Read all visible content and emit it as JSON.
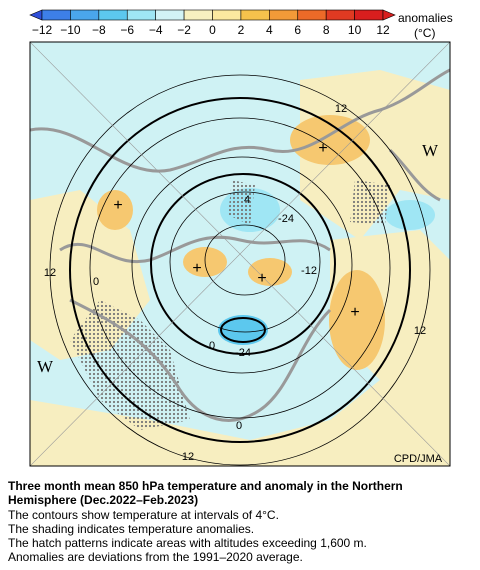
{
  "colorbar": {
    "label": "anomalies",
    "unit": "(°C)",
    "ticks": [
      {
        "value": -12,
        "label": "−12"
      },
      {
        "value": -10,
        "label": "−10"
      },
      {
        "value": -8,
        "label": "−8"
      },
      {
        "value": -6,
        "label": "−6"
      },
      {
        "value": -4,
        "label": "−4"
      },
      {
        "value": -2,
        "label": "−2"
      },
      0,
      2,
      4,
      6,
      8,
      10,
      12
    ],
    "colors": [
      "#2f4fd8",
      "#3d7fe8",
      "#4aa6ec",
      "#5cc8ee",
      "#9fe6f4",
      "#d2f3f6",
      "#f7f0c0",
      "#fbe9a0",
      "#f6c24c",
      "#f29a38",
      "#ec6a28",
      "#e03a22",
      "#d81e1e",
      "#d81e1e"
    ]
  },
  "map": {
    "labels": [
      "12",
      "W",
      "4",
      "-24",
      "+",
      "+",
      "12",
      "0",
      "+",
      "+",
      "-12",
      "+",
      "12",
      "W",
      "0",
      "-24",
      "0",
      "12",
      "CPD/JMA"
    ]
  },
  "caption": {
    "title": [
      "Three month mean 850 hPa temperature and anomaly in the Northern",
      "Hemisphere (Dec.2022–Feb.2023)"
    ],
    "notes": [
      "The contours show temperature at intervals of 4°C.",
      "The shading indicates temperature anomalies.",
      "The hatch patterns indicate areas with altitudes exceeding 1,600 m.",
      "Anomalies are deviations from the 1991–2020 average."
    ]
  }
}
